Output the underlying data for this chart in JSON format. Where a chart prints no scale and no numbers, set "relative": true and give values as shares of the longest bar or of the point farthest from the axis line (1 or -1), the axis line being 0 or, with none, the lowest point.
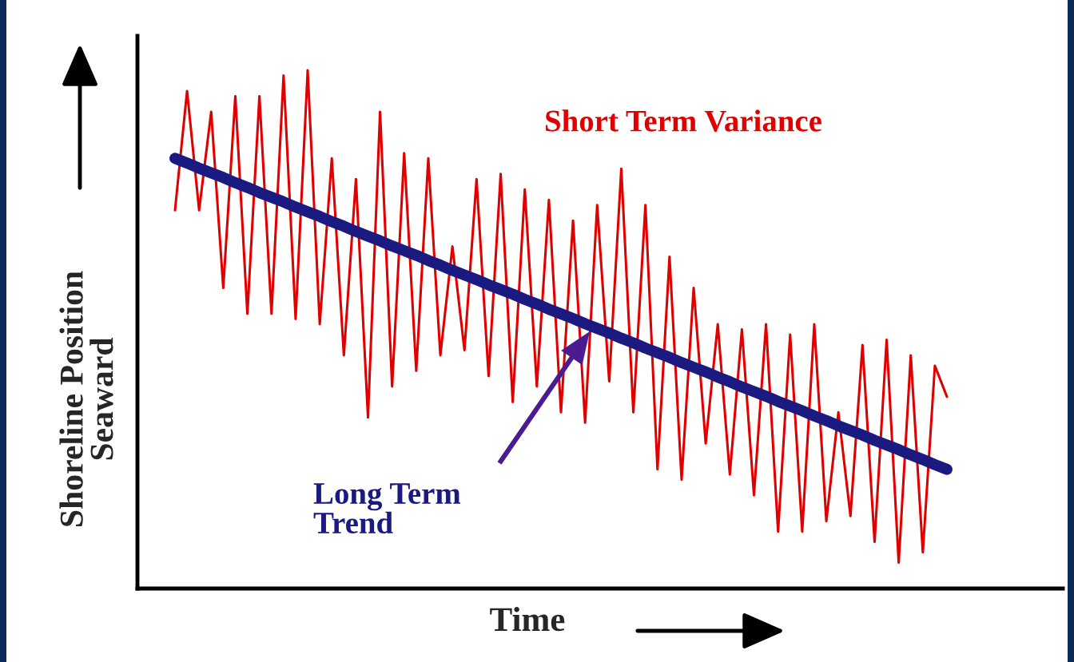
{
  "chart_data": {
    "type": "line",
    "relative": true,
    "xlabel": "Time",
    "ylabel": "Shoreline Position\nSeaward",
    "categories": [
      null,
      null,
      null,
      null,
      null,
      null,
      null,
      null,
      null,
      null,
      null,
      null,
      null,
      null,
      null,
      null,
      null,
      null,
      null,
      null,
      null,
      null,
      null,
      null,
      null,
      null,
      null,
      null,
      null,
      null,
      null,
      null,
      null,
      null,
      null,
      null,
      null,
      null,
      null,
      null,
      null,
      null,
      null,
      null,
      null,
      null,
      null,
      null,
      null,
      null,
      null,
      null,
      null,
      null,
      null,
      null,
      null,
      null,
      null,
      null,
      null,
      null,
      null,
      null,
      null
    ],
    "series": [
      {
        "name": "Short Term Variance",
        "color": "#e00000",
        "values": [
          0.73,
          0.96,
          0.73,
          0.92,
          0.58,
          0.95,
          0.53,
          0.95,
          0.53,
          0.99,
          0.52,
          1.0,
          0.51,
          0.83,
          0.45,
          0.79,
          0.33,
          0.92,
          0.39,
          0.84,
          0.42,
          0.83,
          0.45,
          0.66,
          0.46,
          0.79,
          0.41,
          0.8,
          0.36,
          0.77,
          0.39,
          0.75,
          0.34,
          0.71,
          0.32,
          0.74,
          0.4,
          0.81,
          0.34,
          0.74,
          0.23,
          0.64,
          0.21,
          0.58,
          0.28,
          0.51,
          0.22,
          0.5,
          0.18,
          0.51,
          0.11,
          0.49,
          0.11,
          0.51,
          0.13,
          0.34,
          0.14,
          0.47,
          0.09,
          0.48,
          0.05,
          0.45,
          0.07,
          0.43,
          0.37
        ]
      },
      {
        "name": "Long Term Trend",
        "color": "#1a1a80",
        "values": [
          0.83,
          0.821,
          0.811,
          0.802,
          0.793,
          0.783,
          0.774,
          0.764,
          0.755,
          0.746,
          0.736,
          0.727,
          0.718,
          0.708,
          0.699,
          0.689,
          0.68,
          0.671,
          0.661,
          0.652,
          0.643,
          0.633,
          0.624,
          0.614,
          0.605,
          0.596,
          0.586,
          0.577,
          0.568,
          0.558,
          0.549,
          0.539,
          0.53,
          0.521,
          0.511,
          0.502,
          0.493,
          0.483,
          0.474,
          0.464,
          0.455,
          0.446,
          0.436,
          0.427,
          0.418,
          0.408,
          0.399,
          0.389,
          0.38,
          0.371,
          0.361,
          0.352,
          0.343,
          0.333,
          0.324,
          0.314,
          0.305,
          0.296,
          0.286,
          0.277,
          0.268,
          0.258,
          0.249,
          0.239,
          0.23
        ]
      }
    ]
  }
}
